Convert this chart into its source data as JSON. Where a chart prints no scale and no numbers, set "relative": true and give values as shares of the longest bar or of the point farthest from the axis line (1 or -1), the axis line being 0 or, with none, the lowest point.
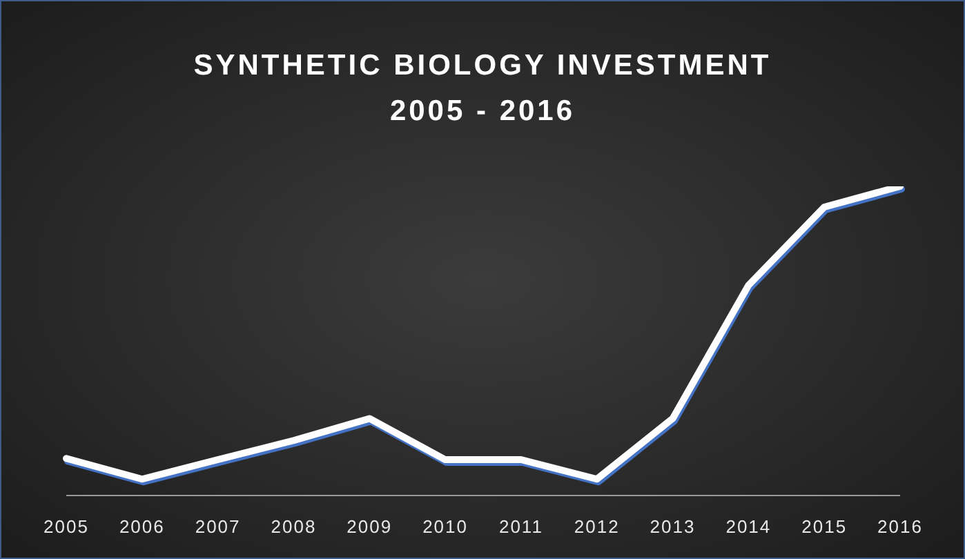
{
  "chart_data": {
    "type": "line",
    "title": "SYNTHETIC BIOLOGY INVESTMENT",
    "subtitle": "2005 - 2016",
    "categories": [
      "2005",
      "2006",
      "2007",
      "2008",
      "2009",
      "2010",
      "2011",
      "2012",
      "2013",
      "2014",
      "2015",
      "2016"
    ],
    "series": [
      {
        "color": "#ffffff",
        "values": [
          0.12,
          0.053,
          0.116,
          0.178,
          0.249,
          0.116,
          0.116,
          0.053,
          0.249,
          0.68,
          0.933,
          1
        ]
      }
    ],
    "relative": true,
    "grid": false,
    "legend": false,
    "marker": "none"
  }
}
